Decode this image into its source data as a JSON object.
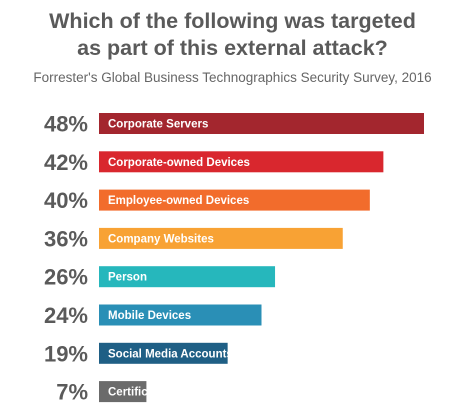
{
  "title_lines": [
    "Which of the following was targeted",
    "as part of this external attack?"
  ],
  "subtitle": "Forrester's Global Business Technographics Security Survey, 2016",
  "chart_data": {
    "type": "bar",
    "orientation": "horizontal",
    "categories": [
      "Corporate Servers",
      "Corporate-owned Devices",
      "Employee-owned Devices",
      "Company Websites",
      "Person",
      "Mobile Devices",
      "Social Media Accounts",
      "Certificates"
    ],
    "values": [
      48,
      42,
      40,
      36,
      26,
      24,
      19,
      7
    ],
    "value_labels": [
      "48%",
      "42%",
      "40%",
      "36%",
      "26%",
      "24%",
      "19%",
      "7%"
    ],
    "colors": [
      "#a3262e",
      "#d9272e",
      "#f26c2c",
      "#f8a234",
      "#26b7bc",
      "#2a8fb6",
      "#1f5f85",
      "#6b6b6b"
    ],
    "title": "Which of the following was targeted as part of this external attack?",
    "subtitle": "Forrester's Global Business Technographics Security Survey, 2016",
    "xlim": [
      0,
      48
    ],
    "grid": false,
    "legend": "none"
  }
}
